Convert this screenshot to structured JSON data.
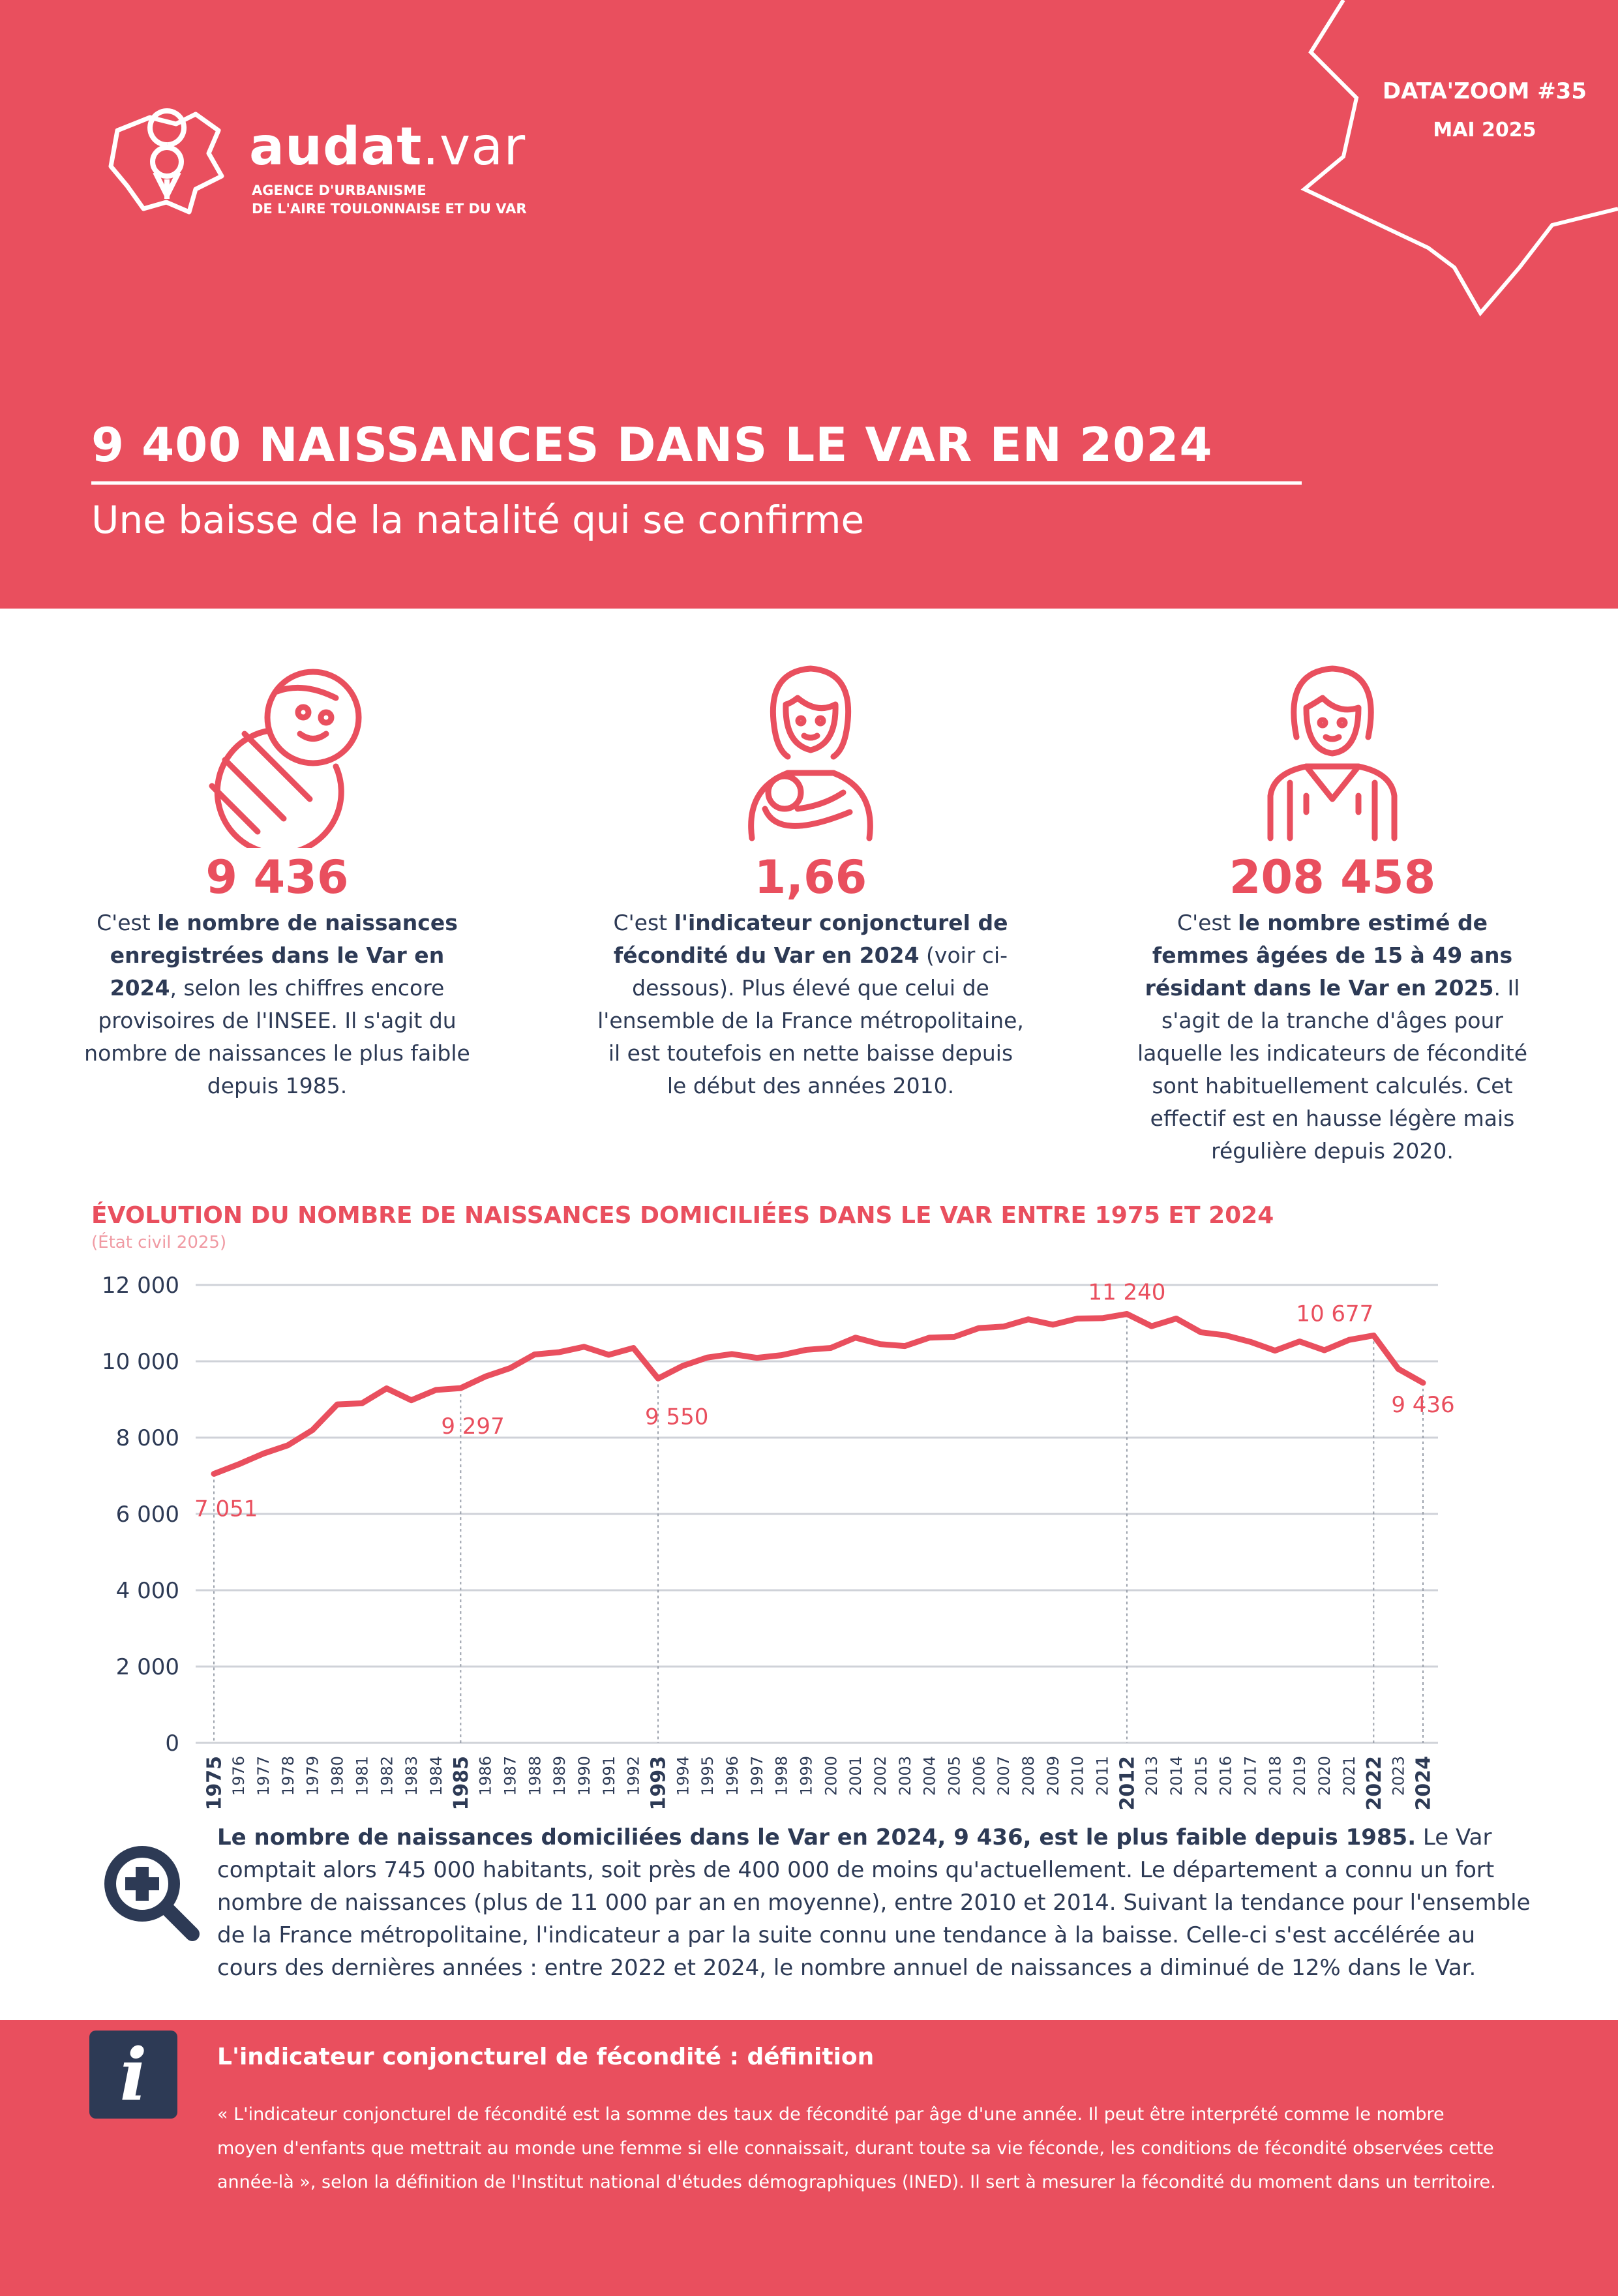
{
  "header": {
    "logo_name": "audat",
    "logo_suffix": ".var",
    "logo_sub1": "AGENCE D'URBANISME",
    "logo_sub2": "DE L'AIRE TOULONNAISE ET DU VAR",
    "issue": "DATA'ZOOM #35",
    "date": "MAI 2025",
    "title": "9 400 NAISSANCES DANS LE VAR EN 2024",
    "subtitle": "Une baisse de la natalité qui se confirme"
  },
  "stats": [
    {
      "icon": "baby-icon",
      "value": "9 436",
      "t1": "C'est ",
      "b1": "le nombre de naissances enregistrées dans le Var en 2024",
      "t2": ", selon les chiffres encore provisoires de l'INSEE. Il s'agit du nombre de naissances le plus faible depuis 1985."
    },
    {
      "icon": "mother-child-icon",
      "value": "1,66",
      "t1": "C'est ",
      "b1": "l'indicateur conjoncturel de fécondité du Var en 2024",
      "t2": " (voir ci-dessous). Plus élevé que celui de l'ensemble de la France métropolitaine, il est toutefois en nette baisse depuis le début des années 2010."
    },
    {
      "icon": "woman-icon",
      "value": "208 458",
      "t1": "C'est ",
      "b1": "le nombre estimé de femmes âgées de 15 à 49 ans résidant dans le Var en 2025",
      "t2": ". Il s'agit de la tranche d'âges pour laquelle les indicateurs de fécondité sont habituellement calculés. Cet effectif est en hausse légère mais régulière depuis 2020."
    }
  ],
  "chart_data": {
    "type": "line",
    "title": "ÉVOLUTION DU NOMBRE DE NAISSANCES DOMICILIÉES DANS LE VAR ENTRE 1975 ET 2024",
    "source": "(État civil 2025)",
    "ylim": [
      0,
      12000
    ],
    "yticks": [
      0,
      2000,
      4000,
      6000,
      8000,
      10000,
      12000
    ],
    "ytick_labels": [
      "0",
      "2 000",
      "4 000",
      "6 000",
      "8 000",
      "10 000",
      "12 000"
    ],
    "x": [
      1975,
      1976,
      1977,
      1978,
      1979,
      1980,
      1981,
      1982,
      1983,
      1984,
      1985,
      1986,
      1987,
      1988,
      1989,
      1990,
      1991,
      1992,
      1993,
      1994,
      1995,
      1996,
      1997,
      1998,
      1999,
      2000,
      2001,
      2002,
      2003,
      2004,
      2005,
      2006,
      2007,
      2008,
      2009,
      2010,
      2011,
      2012,
      2013,
      2014,
      2015,
      2016,
      2017,
      2018,
      2019,
      2020,
      2021,
      2022,
      2023,
      2024
    ],
    "bold_years": [
      1975,
      1985,
      1993,
      2012,
      2022,
      2024
    ],
    "values": [
      7051,
      7300,
      7580,
      7800,
      8200,
      8870,
      8900,
      9290,
      8980,
      9250,
      9297,
      9600,
      9820,
      10180,
      10240,
      10380,
      10170,
      10350,
      9550,
      9880,
      10100,
      10190,
      10090,
      10160,
      10300,
      10350,
      10620,
      10450,
      10400,
      10620,
      10640,
      10870,
      10910,
      11100,
      10960,
      11120,
      11130,
      11240,
      10920,
      11120,
      10760,
      10680,
      10510,
      10280,
      10520,
      10290,
      10560,
      10677,
      9800,
      9436
    ],
    "annotations": [
      {
        "year": 1975,
        "value": 7051,
        "label": "7 051"
      },
      {
        "year": 1985,
        "value": 9297,
        "label": "9 297"
      },
      {
        "year": 1993,
        "value": 9550,
        "label": "9 550"
      },
      {
        "year": 2012,
        "value": 11240,
        "label": "11 240"
      },
      {
        "year": 2022,
        "value": 10677,
        "label": "10 677"
      },
      {
        "year": 2024,
        "value": 9436,
        "label": "9 436"
      }
    ],
    "line_color": "#e94f5e",
    "grid": true
  },
  "note": {
    "bold": "Le nombre de naissances domiciliées dans le Var en 2024, 9 436, est le plus faible depuis 1985.",
    "text": " Le Var comptait alors 745 000 habitants, soit près de 400 000 de moins qu'actuellement. Le département a connu un fort nombre de naissances (plus de 11 000 par an en moyenne), entre 2010 et 2014. Suivant la tendance pour l'ensemble de la France métropolitaine, l'indicateur a par la suite connu une tendance à la baisse. Celle-ci s'est accélérée au cours des dernières années : entre 2022 et 2024, le nombre annuel de naissances a diminué de 12% dans le Var."
  },
  "definition": {
    "icon": "i",
    "title": "L'indicateur conjoncturel de fécondité : définition",
    "text": "« L'indicateur conjoncturel de fécondité est la somme des taux de fécondité par âge d'une année. Il peut être interprété comme le nombre moyen d'enfants que mettrait au monde une femme si elle connaissait, durant toute sa vie féconde, les conditions de fécondité observées cette année-là », selon la définition de l'Institut national d'études démographiques (INED). Il sert à mesurer la fécondité du moment dans un territoire."
  },
  "colors": {
    "accent": "#e94f5e",
    "navy": "#2d3a55",
    "grid": "#cfd2d8"
  }
}
